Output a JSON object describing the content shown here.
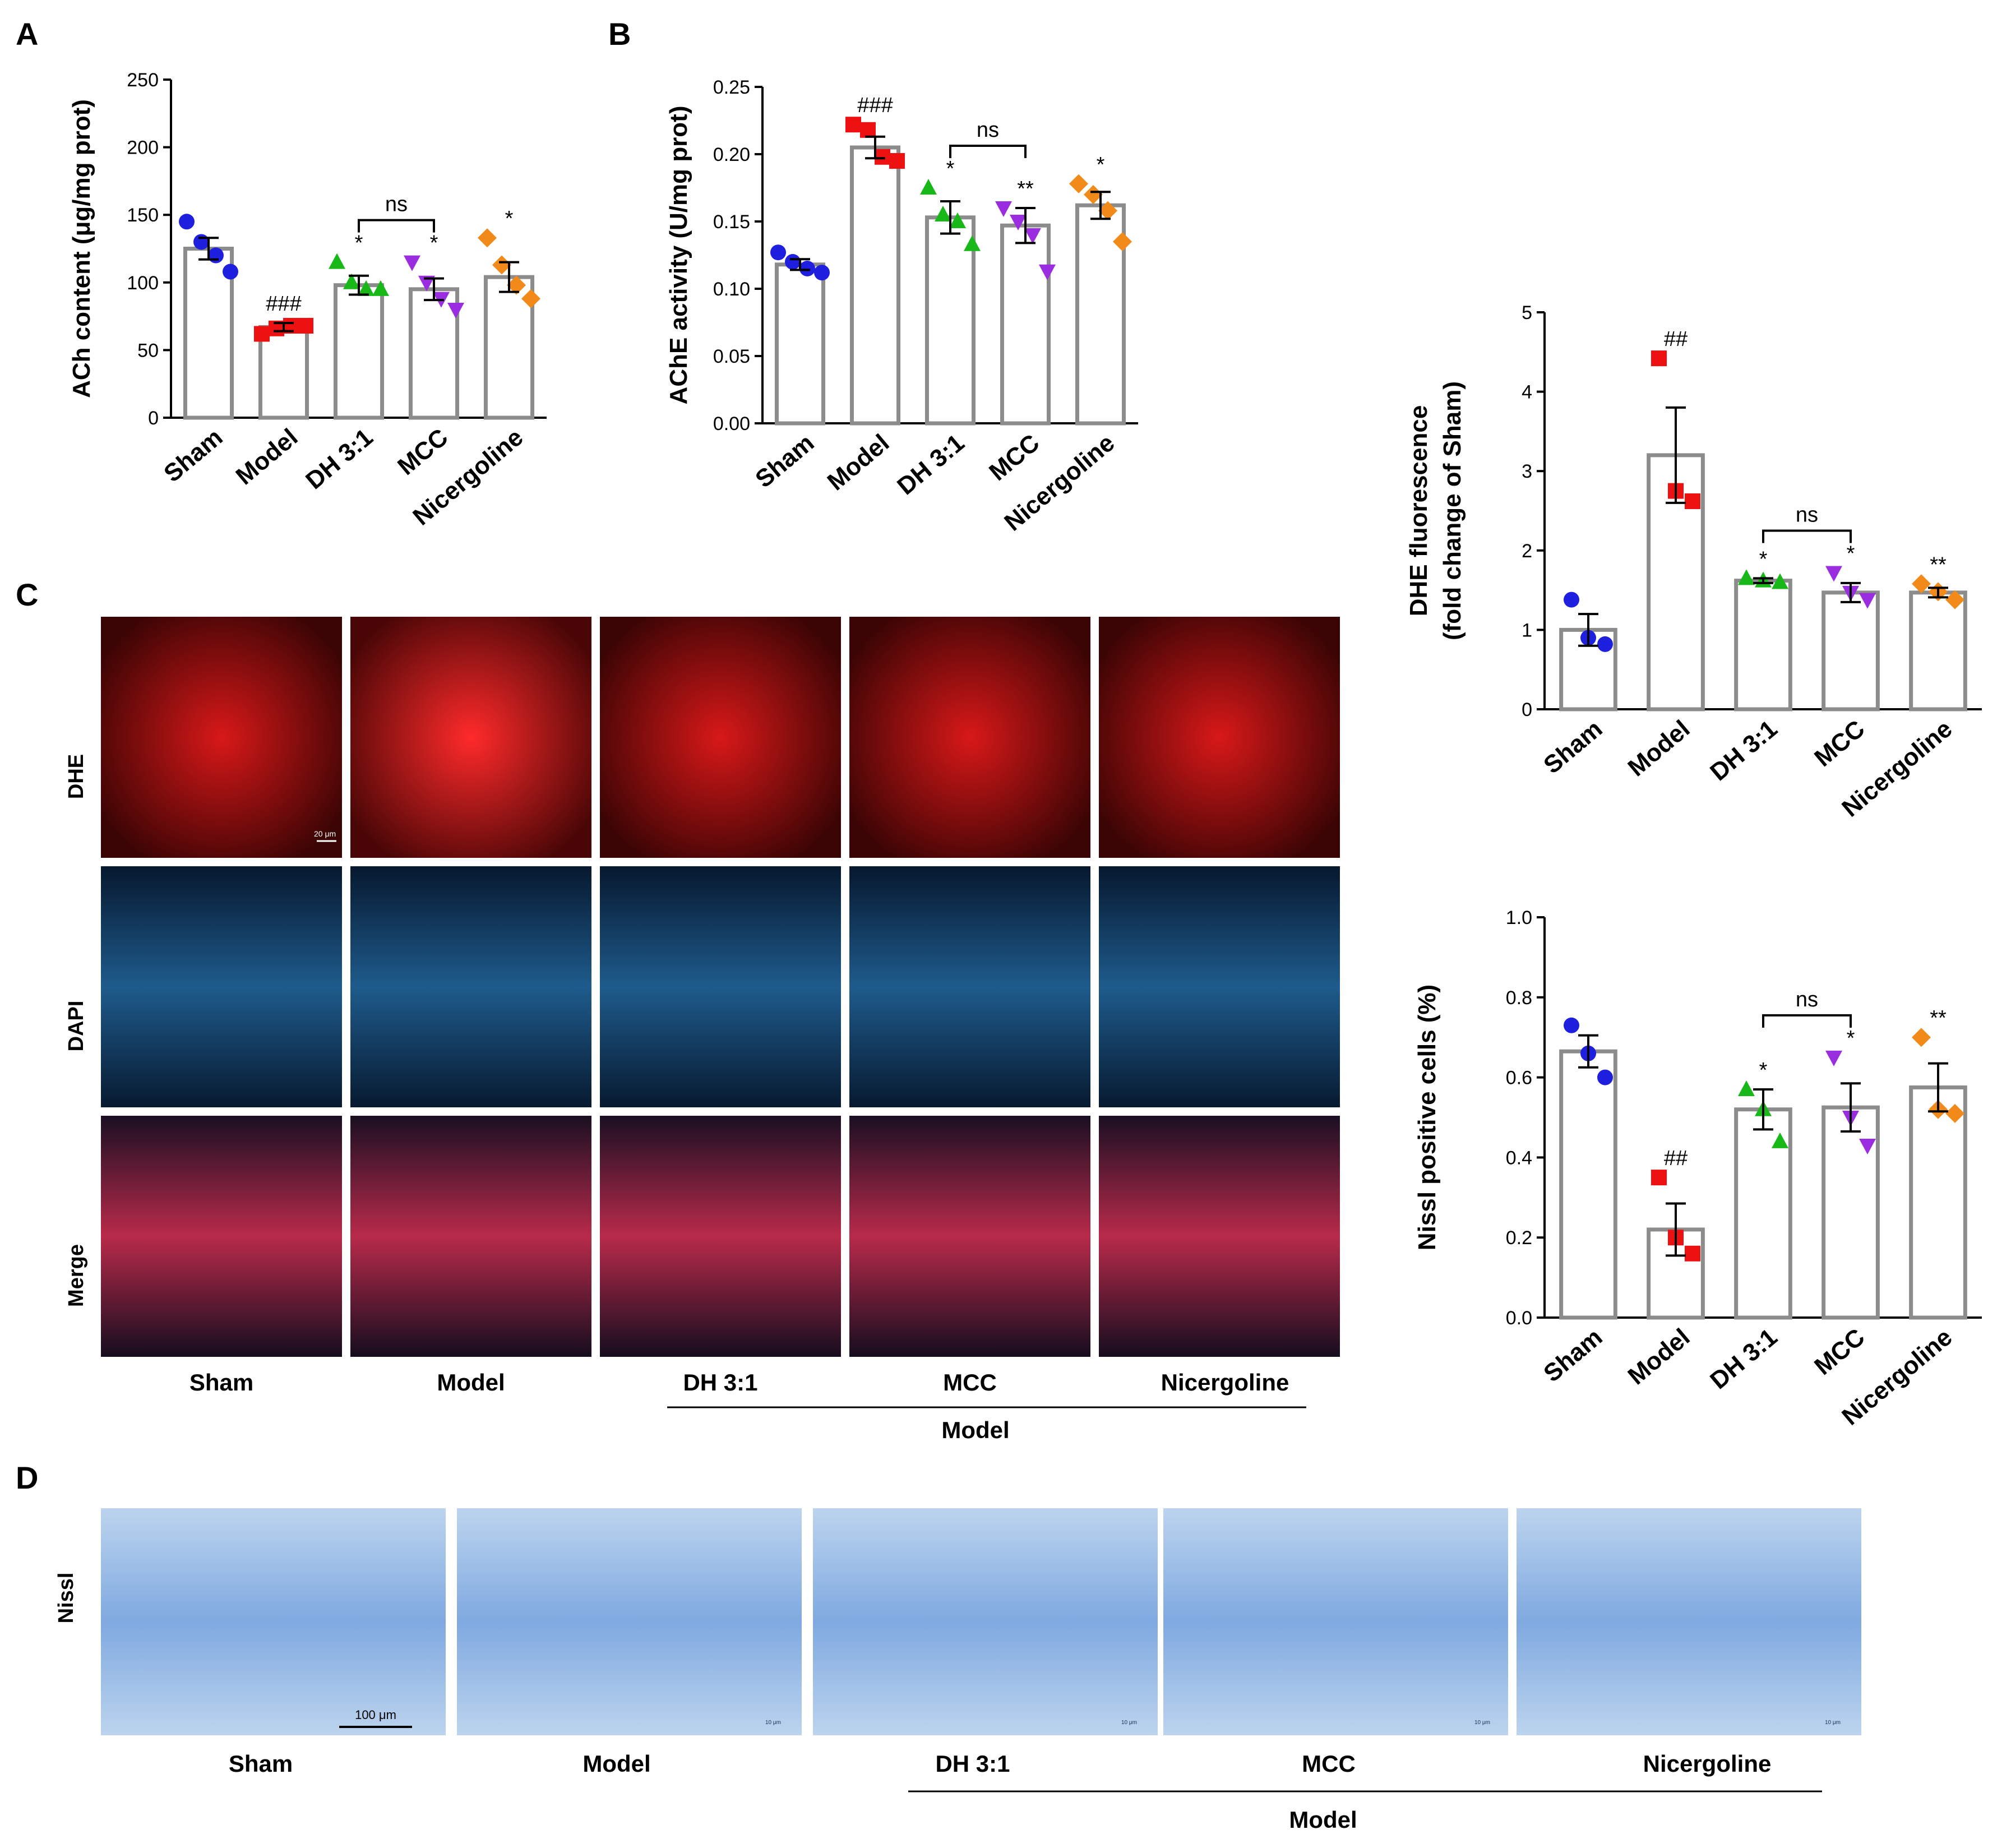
{
  "panels": {
    "A": "A",
    "B": "B",
    "C": "C",
    "D": "D"
  },
  "charts": [
    {
      "id": "ach",
      "type": "bar",
      "ylabel": "ACh content (μg/mg prot)",
      "ylim": [
        0,
        250
      ],
      "yticks": [
        0,
        50,
        100,
        150,
        200,
        250
      ],
      "ytick_labels": [
        "0",
        "50",
        "100",
        "150",
        "200",
        "250"
      ],
      "categories": [
        "Sham",
        "Model",
        "DH 3:1",
        "MCC",
        "Nicergoline"
      ],
      "means": [
        125,
        67,
        98,
        95,
        104
      ],
      "sem": [
        8,
        3,
        7,
        8,
        11
      ],
      "points": [
        [
          145,
          130,
          120,
          108
        ],
        [
          62,
          66,
          68,
          68
        ],
        [
          115,
          100,
          95,
          95
        ],
        [
          115,
          100,
          88,
          80
        ],
        [
          133,
          113,
          98,
          88
        ]
      ],
      "sig": [
        "",
        "###",
        "*",
        "*",
        "*"
      ],
      "ns_label": "ns",
      "ns_pair": [
        2,
        3
      ]
    },
    {
      "id": "ache",
      "type": "bar",
      "ylabel": "AChE activity (U/mg prot)",
      "ylim": [
        0,
        0.25
      ],
      "yticks": [
        0,
        0.05,
        0.1,
        0.15,
        0.2,
        0.25
      ],
      "ytick_labels": [
        "0.00",
        "0.05",
        "0.10",
        "0.15",
        "0.20",
        "0.25"
      ],
      "categories": [
        "Sham",
        "Model",
        "DH 3:1",
        "MCC",
        "Nicergoline"
      ],
      "means": [
        0.118,
        0.205,
        0.153,
        0.147,
        0.162
      ],
      "sem": [
        0.004,
        0.008,
        0.012,
        0.013,
        0.01
      ],
      "points": [
        [
          0.127,
          0.12,
          0.115,
          0.112
        ],
        [
          0.222,
          0.218,
          0.198,
          0.195
        ],
        [
          0.175,
          0.155,
          0.15,
          0.133
        ],
        [
          0.16,
          0.15,
          0.14,
          0.113
        ],
        [
          0.178,
          0.17,
          0.158,
          0.135
        ]
      ],
      "sig": [
        "",
        "###",
        "*",
        "**",
        "*"
      ],
      "ns_label": "ns",
      "ns_pair": [
        2,
        3
      ]
    },
    {
      "id": "dhe",
      "type": "bar",
      "ylabel": "DHE fluorescence",
      "ylabel2": "(fold change of Sham)",
      "ylim": [
        0,
        5
      ],
      "yticks": [
        0,
        1,
        2,
        3,
        4,
        5
      ],
      "ytick_labels": [
        "0",
        "1",
        "2",
        "3",
        "4",
        "5"
      ],
      "categories": [
        "Sham",
        "Model",
        "DH 3:1",
        "MCC",
        "Nicergoline"
      ],
      "means": [
        1.0,
        3.2,
        1.62,
        1.47,
        1.47
      ],
      "sem": [
        0.2,
        0.6,
        0.03,
        0.12,
        0.06
      ],
      "points": [
        [
          1.38,
          0.9,
          0.82
        ],
        [
          4.42,
          2.75,
          2.62
        ],
        [
          1.65,
          1.62,
          1.6
        ],
        [
          1.72,
          1.47,
          1.38
        ],
        [
          1.58,
          1.48,
          1.38
        ]
      ],
      "sig": [
        "",
        "##",
        "*",
        "*",
        "**"
      ],
      "ns_label": "ns",
      "ns_pair": [
        2,
        3
      ]
    },
    {
      "id": "nissl",
      "type": "bar",
      "ylabel": "Nissl positive cells (%)",
      "ylim": [
        0,
        1.0
      ],
      "yticks": [
        0,
        0.2,
        0.4,
        0.6,
        0.8,
        1.0
      ],
      "ytick_labels": [
        "0.0",
        "0.2",
        "0.4",
        "0.6",
        "0.8",
        "1.0"
      ],
      "categories": [
        "Sham",
        "Model",
        "DH 3:1",
        "MCC",
        "Nicergoline"
      ],
      "means": [
        0.665,
        0.22,
        0.52,
        0.525,
        0.575
      ],
      "sem": [
        0.04,
        0.065,
        0.05,
        0.06,
        0.06
      ],
      "points": [
        [
          0.73,
          0.66,
          0.6
        ],
        [
          0.35,
          0.2,
          0.16
        ],
        [
          0.57,
          0.52,
          0.44
        ],
        [
          0.65,
          0.5,
          0.43
        ],
        [
          0.7,
          0.52,
          0.51
        ]
      ],
      "sig": [
        "",
        "##",
        "*",
        "*",
        "**"
      ],
      "ns_label": "ns",
      "ns_pair": [
        2,
        3
      ]
    }
  ],
  "chart_data": [
    {
      "type": "bar",
      "title": "",
      "xlabel": "",
      "ylabel": "ACh content (μg/mg prot)",
      "ylim": [
        0,
        250
      ],
      "categories": [
        "Sham",
        "Model",
        "DH 3:1",
        "MCC",
        "Nicergoline"
      ],
      "values": [
        125,
        67,
        98,
        95,
        104
      ]
    },
    {
      "type": "bar",
      "title": "",
      "xlabel": "",
      "ylabel": "AChE activity (U/mg prot)",
      "ylim": [
        0,
        0.25
      ],
      "categories": [
        "Sham",
        "Model",
        "DH 3:1",
        "MCC",
        "Nicergoline"
      ],
      "values": [
        0.118,
        0.205,
        0.153,
        0.147,
        0.162
      ]
    },
    {
      "type": "bar",
      "title": "",
      "xlabel": "",
      "ylabel": "DHE fluorescence (fold change of Sham)",
      "ylim": [
        0,
        5
      ],
      "categories": [
        "Sham",
        "Model",
        "DH 3:1",
        "MCC",
        "Nicergoline"
      ],
      "values": [
        1.0,
        3.2,
        1.62,
        1.47,
        1.47
      ]
    },
    {
      "type": "bar",
      "title": "",
      "xlabel": "",
      "ylabel": "Nissl positive cells (%)",
      "ylim": [
        0,
        1.0
      ],
      "categories": [
        "Sham",
        "Model",
        "DH 3:1",
        "MCC",
        "Nicergoline"
      ],
      "values": [
        0.665,
        0.22,
        0.52,
        0.525,
        0.575
      ]
    }
  ],
  "colors": {
    "sham": "#1f1fe0",
    "model": "#ee1111",
    "dh": "#19b819",
    "mcc": "#9b2de0",
    "nicergoline": "#f28a1a",
    "bar": "#8c8c8c"
  },
  "shapes": [
    "circle",
    "square",
    "triangle-up",
    "triangle-down",
    "diamond"
  ],
  "panel_c": {
    "rows": [
      "DHE",
      "DAPI",
      "Merge"
    ],
    "cols": [
      "Sham",
      "Model",
      "DH 3:1",
      "MCC",
      "Nicergoline"
    ],
    "group_label": "Model",
    "scale_bar": "20 μm"
  },
  "panel_d": {
    "row": "Nissl",
    "cols": [
      "Sham",
      "Model",
      "DH 3:1",
      "MCC",
      "Nicergoline"
    ],
    "group_label": "Model",
    "scale_bar": "100 μm",
    "small_scale": "10 μm"
  }
}
